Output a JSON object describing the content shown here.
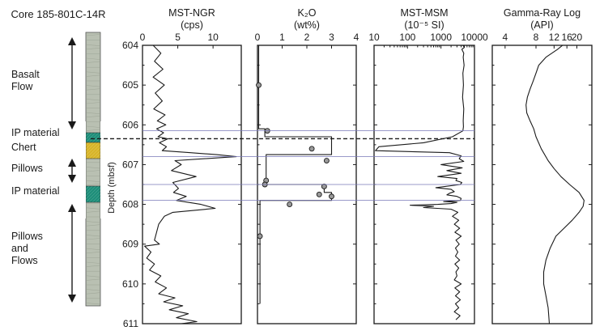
{
  "figure": {
    "core_title": "Core 185-801C-14R",
    "depth_label": "Depth (mbsf)",
    "depth_ticks": [
      "604",
      "605",
      "606",
      "607",
      "608",
      "609",
      "610",
      "611"
    ],
    "units": [
      {
        "label": "Basalt Flow",
        "lines": [
          "Basalt",
          "Flow"
        ]
      },
      {
        "label": "IP material",
        "lines": [
          "IP material"
        ]
      },
      {
        "label": "Chert",
        "lines": [
          "Chert"
        ]
      },
      {
        "label": "Pillows",
        "lines": [
          "Pillows"
        ]
      },
      {
        "label": "IP material",
        "lines": [
          "IP material"
        ]
      },
      {
        "label": "Pillows and Flows",
        "lines": [
          "Pillows",
          "and",
          "Flows"
        ]
      }
    ]
  },
  "colors": {
    "core_base": "#b9c0b2",
    "core_dark": "#8f9687",
    "ip_material": "#1f8f7a",
    "chert": "#d8b52a",
    "boundary_line": "#7878b8",
    "curve": "#1a1a1a",
    "marker": "#9a9a9a"
  },
  "chart_data": [
    {
      "type": "line",
      "title_lines": [
        "MST-NGR",
        "(cps)"
      ],
      "x_ticks": [
        "0",
        "5",
        "10"
      ],
      "xlim": [
        0,
        14
      ],
      "ylim": [
        611,
        604
      ],
      "series": [
        {
          "x": [
            1.5,
            2.6,
            1.7,
            2.9,
            1.5,
            3.1,
            1.8,
            2.8,
            1.6,
            3.2,
            2.1,
            3.3,
            2.0,
            3.0,
            2.2,
            3.6,
            2.4,
            3.4,
            2.8,
            6.8,
            10.5,
            13.3,
            4.6,
            5.5,
            4.1,
            7.6,
            4.3,
            5.1,
            4.4,
            6.2,
            4.8,
            8.3,
            10.3,
            4.3,
            3.1,
            2.3,
            2.0,
            1.7,
            2.4,
            0.3,
            1.2,
            0.6,
            1.7,
            1.0,
            2.6,
            1.8,
            3.4,
            2.3,
            4.6,
            3.0,
            5.7,
            3.8,
            6.5,
            4.8,
            7.7,
            5.5,
            8.8,
            6.3,
            9.3,
            7.2,
            9.8
          ],
          "depth": [
            604.0,
            604.2,
            604.4,
            604.6,
            604.8,
            605.0,
            605.2,
            605.4,
            605.6,
            605.75,
            605.9,
            606.0,
            606.1,
            606.2,
            606.3,
            606.35,
            606.45,
            606.55,
            606.65,
            606.7,
            606.75,
            606.8,
            606.9,
            607.0,
            607.15,
            607.3,
            607.45,
            607.6,
            607.7,
            607.8,
            607.9,
            608.0,
            608.1,
            608.2,
            608.3,
            608.5,
            608.7,
            608.9,
            609.0,
            609.05,
            609.2,
            609.35,
            609.5,
            609.65,
            609.8,
            609.95,
            610.1,
            610.25,
            610.35,
            610.45,
            610.55,
            610.65,
            610.75,
            610.85,
            610.95,
            611.0,
            611.1,
            611.2,
            611.3,
            611.4,
            611.5
          ]
        }
      ]
    },
    {
      "type": "line",
      "title_lines": [
        "K₂O",
        "(wt%)"
      ],
      "x_ticks": [
        "0",
        "1",
        "2",
        "3",
        "4"
      ],
      "xlim": [
        0,
        4
      ],
      "ylim": [
        611,
        604
      ],
      "series": [
        {
          "x": [
            0.05,
            0.05,
            0.3,
            0.3,
            3.0,
            3.0,
            0.35,
            0.35,
            2.7,
            2.7,
            3.0,
            3.0,
            0.1,
            0.1
          ],
          "depth": [
            604.0,
            606.1,
            606.1,
            606.3,
            606.3,
            606.75,
            606.75,
            607.5,
            607.5,
            607.7,
            607.7,
            607.9,
            607.9,
            610.5
          ]
        }
      ],
      "markers": {
        "x": [
          0.05,
          0.4,
          2.2,
          2.8,
          0.35,
          0.3,
          2.7,
          2.5,
          3.0,
          1.3,
          0.1
        ],
        "depth": [
          605.0,
          606.15,
          606.6,
          606.9,
          607.4,
          607.5,
          607.55,
          607.75,
          607.8,
          608.0,
          608.8
        ]
      }
    },
    {
      "type": "line",
      "title_lines": [
        "MST-MSM",
        "(10⁻⁵ SI)"
      ],
      "x_ticks": [
        "10",
        "100",
        "1000",
        "10000"
      ],
      "xscale": "log",
      "xlim": [
        10,
        10000
      ],
      "ylim": [
        611,
        604
      ],
      "series": [
        {
          "x": [
            4500,
            5000,
            4200,
            4800,
            4600,
            4900,
            4500,
            4700,
            4400,
            4800,
            4600,
            4700,
            4500,
            2200,
            300,
            14,
            11,
            1800,
            4000,
            3500,
            4800,
            1000,
            4300,
            1500,
            4000,
            800,
            3000,
            2800,
            4200,
            3800,
            700,
            2000,
            2500,
            1800,
            1500,
            3000,
            4000,
            3800,
            1200,
            3000,
            2000,
            800,
            120,
            600,
            300,
            2000,
            3200,
            2200,
            3400,
            2500,
            3600,
            2600,
            4000,
            2800,
            3500,
            2700,
            3200,
            2700,
            3600,
            2600,
            3400,
            2800,
            3000,
            2500,
            4000,
            2600,
            3600,
            2700,
            3800,
            2700,
            3400,
            2500,
            3700,
            2800
          ],
          "depth": [
            604.0,
            604.05,
            604.1,
            604.2,
            604.3,
            604.5,
            604.7,
            605.0,
            605.3,
            605.6,
            605.9,
            606.05,
            606.15,
            606.3,
            606.45,
            606.55,
            606.65,
            606.7,
            606.78,
            606.85,
            606.92,
            607.0,
            607.08,
            607.15,
            607.22,
            607.3,
            607.35,
            607.4,
            607.45,
            607.5,
            607.58,
            607.62,
            607.68,
            607.72,
            607.76,
            607.8,
            607.85,
            607.9,
            607.93,
            607.95,
            607.98,
            608.0,
            608.02,
            608.05,
            608.08,
            608.12,
            608.2,
            608.3,
            608.4,
            608.5,
            608.6,
            608.7,
            608.8,
            608.9,
            609.0,
            609.1,
            609.2,
            609.3,
            609.4,
            609.5,
            609.6,
            609.7,
            609.8,
            609.9,
            610.0,
            610.1,
            610.2,
            610.3,
            610.4,
            610.5,
            610.6,
            610.7,
            610.8,
            610.9
          ]
        }
      ]
    },
    {
      "type": "line",
      "title_lines": [
        "Gamma-Ray Log",
        "(API)"
      ],
      "x_ticks": [
        "4",
        "8",
        "12",
        "16",
        "20"
      ],
      "xscale": "log",
      "xlim": [
        3,
        28
      ],
      "ylim": [
        611,
        604
      ],
      "series": [
        {
          "x": [
            14.5,
            13.0,
            10.0,
            8.5,
            8.0,
            7.5,
            7.0,
            6.6,
            6.4,
            6.5,
            7.0,
            7.6,
            8.0,
            9.0,
            10.5,
            12.0,
            14.0,
            17.0,
            21.0,
            23.5,
            23.0,
            21.0,
            18.0,
            15.0,
            12.5,
            11.0,
            10.0,
            9.5,
            9.5,
            10.0,
            10.5,
            10.8
          ],
          "depth": [
            604.0,
            604.1,
            604.3,
            604.5,
            604.7,
            604.9,
            605.1,
            605.3,
            605.5,
            605.7,
            605.9,
            606.1,
            606.3,
            606.6,
            606.9,
            607.1,
            607.3,
            607.5,
            607.7,
            607.9,
            608.05,
            608.2,
            608.4,
            608.6,
            608.8,
            609.1,
            609.4,
            609.7,
            610.0,
            610.3,
            610.6,
            611.0
          ]
        }
      ]
    }
  ]
}
